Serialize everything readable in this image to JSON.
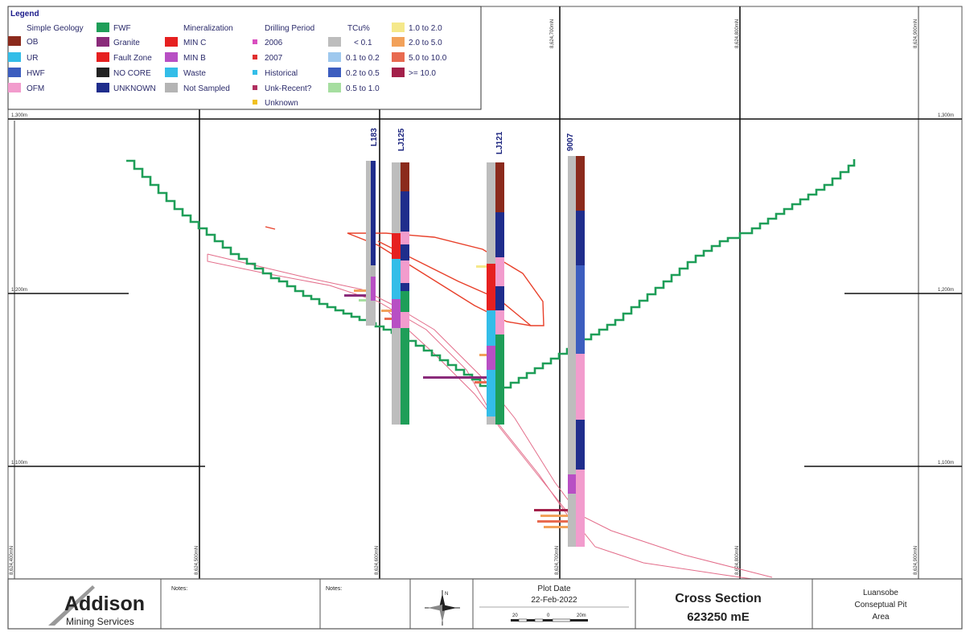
{
  "legend": {
    "title": "Legend",
    "geology_header": "Simple Geology",
    "mineralization_header": "Mineralization",
    "drilling_header": "Drilling Period",
    "grade_header": "TCu%",
    "geology": [
      {
        "label": "OB",
        "color": "#8b2a1c"
      },
      {
        "label": "UR",
        "color": "#33bde8"
      },
      {
        "label": "HWF",
        "color": "#3c5dbf"
      },
      {
        "label": "OFM",
        "color": "#f29ccd"
      },
      {
        "label": "FWF",
        "color": "#1e9e58"
      },
      {
        "label": "Granite",
        "color": "#8a2b7a"
      },
      {
        "label": "Fault Zone",
        "color": "#e62020"
      },
      {
        "label": "NO CORE",
        "color": "#222222"
      },
      {
        "label": "UNKNOWN",
        "color": "#1f2d8c"
      }
    ],
    "mineralization": [
      {
        "label": "MIN C",
        "color": "#e62020"
      },
      {
        "label": "MIN B",
        "color": "#b84fc4"
      },
      {
        "label": "Waste",
        "color": "#33bde8"
      },
      {
        "label": "Not Sampled",
        "color": "#b4b4b4"
      }
    ],
    "drilling": [
      {
        "label": "2006",
        "color": "#d94fbf"
      },
      {
        "label": "2007",
        "color": "#e03030"
      },
      {
        "label": "Historical",
        "color": "#33bde8"
      },
      {
        "label": "Unk-Recent?",
        "color": "#b03060"
      },
      {
        "label": "Unknown",
        "color": "#f0c020"
      }
    ],
    "grades": [
      {
        "label": "< 0.1",
        "color": "#bdbdbd"
      },
      {
        "label": "0.1 to 0.2",
        "color": "#9ec8ee"
      },
      {
        "label": "0.2 to 0.5",
        "color": "#3c5dbf"
      },
      {
        "label": "0.5 to 1.0",
        "color": "#a6dea0"
      },
      {
        "label": "1.0 to 2.0",
        "color": "#f5e88a"
      },
      {
        "label": "2.0 to 5.0",
        "color": "#f2a15a"
      },
      {
        "label": "5.0 to 10.0",
        "color": "#e86a50"
      },
      {
        "label": ">= 10.0",
        "color": "#a3204a"
      }
    ]
  },
  "elevations": [
    "1,300m",
    "1,200m",
    "1,100m"
  ],
  "northings": [
    "8,624,400mN",
    "8,624,500mN",
    "8,624,600mN",
    "8,624,700mN",
    "8,624,800mN",
    "8,624,900mN"
  ],
  "drillholes": [
    "L183",
    "LJ125",
    "LJ121",
    "9007"
  ],
  "title_block": {
    "company": "Addison",
    "company_sub": "Mining Services",
    "notes_label_1": "Notes:",
    "notes_label_2": "Notes:",
    "compass_n": "N",
    "plot_date_label": "Plot Date",
    "plot_date": "22-Feb-2022",
    "scale_labels": [
      "20",
      "0",
      "20m"
    ],
    "section_title": "Cross Section",
    "section_easting": "623250 mE",
    "project_line1": "Luansobe",
    "project_line2": "Conseptual Pit",
    "project_line3": "Area"
  }
}
